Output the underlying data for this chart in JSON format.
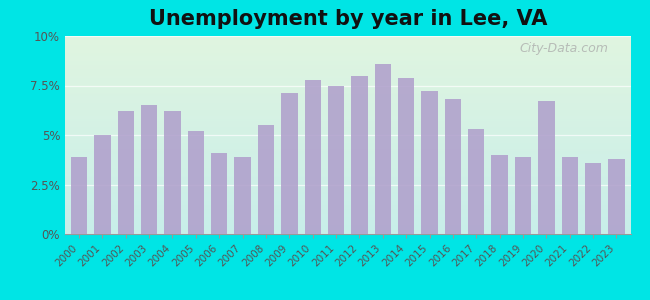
{
  "title": "Unemployment by year in Lee, VA",
  "years": [
    2000,
    2001,
    2002,
    2003,
    2004,
    2005,
    2006,
    2007,
    2008,
    2009,
    2010,
    2011,
    2012,
    2013,
    2014,
    2015,
    2016,
    2017,
    2018,
    2019,
    2020,
    2021,
    2022,
    2023
  ],
  "values": [
    3.9,
    5.0,
    6.2,
    6.5,
    6.2,
    5.2,
    4.1,
    3.9,
    5.5,
    7.1,
    7.8,
    7.5,
    8.0,
    8.6,
    7.9,
    7.2,
    6.8,
    5.3,
    4.0,
    3.9,
    6.7,
    3.9,
    3.6,
    3.8
  ],
  "bar_color": "#b0a0cc",
  "background_outer": "#00e5e5",
  "background_inner_top": "#e0f5e0",
  "background_inner_bottom": "#c8eeea",
  "grid_color": "#d0e8d8",
  "ylim": [
    0,
    10
  ],
  "yticks": [
    0,
    2.5,
    5.0,
    7.5,
    10.0
  ],
  "ytick_labels": [
    "0%",
    "2.5%",
    "5%",
    "7.5%",
    "10%"
  ],
  "title_fontsize": 15,
  "watermark": "City-Data.com",
  "watermark_color": "#aaaaaa"
}
